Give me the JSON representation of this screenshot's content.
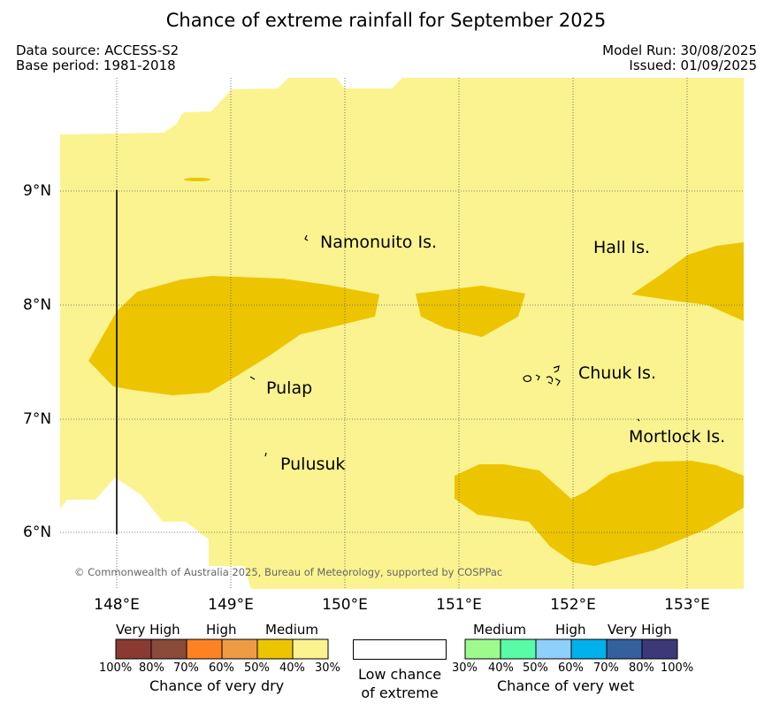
{
  "title": "Chance of extreme rainfall for September 2025",
  "meta": {
    "data_source": "Data source: ACCESS-S2",
    "base_period": "Base period: 1981-2018",
    "model_run": "Model Run: 30/08/2025",
    "issued": "Issued: 01/09/2025"
  },
  "axes": {
    "lat_labels": [
      "9°N",
      "8°N",
      "7°N",
      "6°N"
    ],
    "lon_labels": [
      "148°E",
      "149°E",
      "150°E",
      "151°E",
      "152°E",
      "153°E"
    ]
  },
  "places": {
    "namonuito": "Namonuito Is.",
    "hall": "Hall Is.",
    "chuuk": "Chuuk Is.",
    "pulap": "Pulap",
    "mortlock": "Mortlock Is.",
    "pulusuk": "Pulusuk"
  },
  "credit": "© Commonwealth of Australia 2025, Bureau of Meteorology, supported by COSPPac",
  "colors": {
    "dry_30": "#fbf38f",
    "dry_40": "#ecc500",
    "land_outline": "#000000",
    "grid": "#555555"
  },
  "legend": {
    "dry": {
      "headers": [
        "Very High",
        "High",
        "Medium"
      ],
      "ticks": [
        "100%",
        "80%",
        "70%",
        "60%",
        "50%",
        "40%",
        "30%"
      ],
      "colors": [
        "#8b3a32",
        "#8a4b3a",
        "#fd8224",
        "#ee9b46",
        "#ecc500",
        "#fbf38f"
      ],
      "caption": "Chance of very dry"
    },
    "low": {
      "line1": "Low chance",
      "line2": "of extreme"
    },
    "wet": {
      "headers": [
        "Medium",
        "High",
        "Very High"
      ],
      "ticks": [
        "30%",
        "40%",
        "50%",
        "60%",
        "70%",
        "80%",
        "100%"
      ],
      "colors": [
        "#9dfb8e",
        "#59fba6",
        "#8ecffb",
        "#00b1ec",
        "#35609e",
        "#3b3978"
      ],
      "caption": "Chance of very wet"
    }
  }
}
